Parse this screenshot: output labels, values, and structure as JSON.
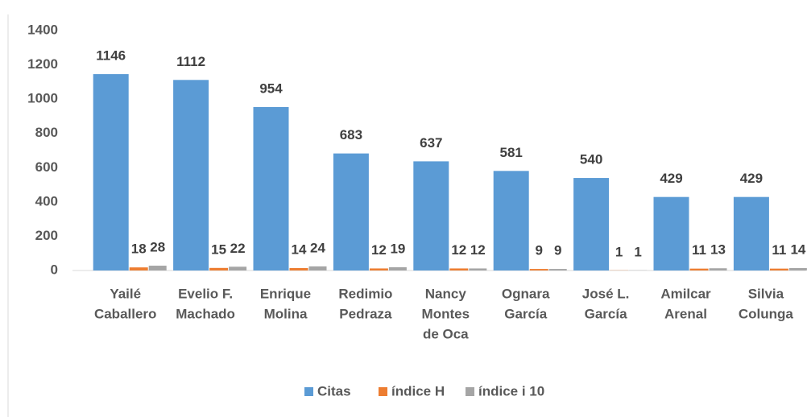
{
  "chart_data": {
    "type": "bar",
    "categories": [
      [
        "Yailé",
        "Caballero"
      ],
      [
        "Evelio F.",
        "Machado"
      ],
      [
        "Enrique",
        "Molina"
      ],
      [
        "Redimio",
        "Pedraza"
      ],
      [
        "Nancy",
        "Montes",
        "de Oca"
      ],
      [
        "Ognara",
        "García"
      ],
      [
        "José L.",
        "García"
      ],
      [
        "Amilcar",
        "Arenal"
      ],
      [
        "Silvia",
        "Colunga"
      ]
    ],
    "series": [
      {
        "name": "Citas",
        "color": "#5b9bd5",
        "values": [
          1146,
          1112,
          954,
          683,
          637,
          581,
          540,
          429,
          429
        ]
      },
      {
        "name": "índice H",
        "color": "#ed7d31",
        "values": [
          18,
          15,
          14,
          12,
          12,
          9,
          1,
          11,
          11
        ]
      },
      {
        "name": "índice i 10",
        "color": "#a5a5a5",
        "values": [
          28,
          22,
          24,
          19,
          12,
          9,
          1,
          13,
          14
        ]
      }
    ],
    "ylim": [
      0,
      1400
    ],
    "yticks": [
      0,
      200,
      400,
      600,
      800,
      1000,
      1200,
      1400
    ],
    "grid": false,
    "legend": "bottom"
  }
}
